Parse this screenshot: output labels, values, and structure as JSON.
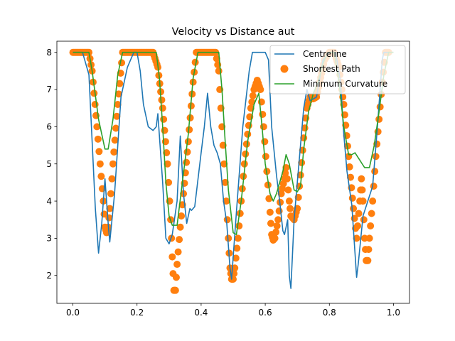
{
  "chart_data": {
    "type": "line",
    "title": "Velocity vs Distance aut",
    "xlabel": "",
    "ylabel": "",
    "xlim": [
      -0.05,
      1.05
    ],
    "ylim": [
      1.25,
      8.3
    ],
    "xticks": [
      0.0,
      0.2,
      0.4,
      0.6,
      0.8,
      1.0
    ],
    "xtick_labels": [
      "0.0",
      "0.2",
      "0.4",
      "0.6",
      "0.8",
      "1.0"
    ],
    "yticks": [
      2,
      3,
      4,
      5,
      6,
      7,
      8
    ],
    "ytick_labels": [
      "2",
      "3",
      "4",
      "5",
      "6",
      "7",
      "8"
    ],
    "grid": false,
    "legend_position": "upper-right",
    "series": [
      {
        "name": "Centreline",
        "style": "line",
        "color": "#1f77b4",
        "points": [
          [
            0.0,
            8.0
          ],
          [
            0.03,
            8.0
          ],
          [
            0.05,
            7.4
          ],
          [
            0.06,
            5.6
          ],
          [
            0.07,
            3.8
          ],
          [
            0.08,
            2.6
          ],
          [
            0.09,
            3.4
          ],
          [
            0.1,
            4.6
          ],
          [
            0.11,
            3.4
          ],
          [
            0.115,
            2.9
          ],
          [
            0.13,
            4.2
          ],
          [
            0.15,
            6.8
          ],
          [
            0.17,
            7.6
          ],
          [
            0.19,
            8.0
          ],
          [
            0.2,
            8.0
          ],
          [
            0.21,
            7.5
          ],
          [
            0.22,
            6.6
          ],
          [
            0.235,
            6.0
          ],
          [
            0.25,
            5.9
          ],
          [
            0.26,
            6.0
          ],
          [
            0.265,
            6.35
          ],
          [
            0.28,
            4.5
          ],
          [
            0.29,
            3.0
          ],
          [
            0.3,
            2.85
          ],
          [
            0.31,
            3.1
          ],
          [
            0.325,
            4.0
          ],
          [
            0.335,
            5.75
          ],
          [
            0.345,
            4.2
          ],
          [
            0.355,
            3.4
          ],
          [
            0.365,
            3.8
          ],
          [
            0.37,
            3.75
          ],
          [
            0.38,
            3.85
          ],
          [
            0.4,
            5.3
          ],
          [
            0.41,
            6.0
          ],
          [
            0.42,
            6.9
          ],
          [
            0.43,
            6.0
          ],
          [
            0.44,
            5.5
          ],
          [
            0.45,
            5.3
          ],
          [
            0.46,
            5.0
          ],
          [
            0.47,
            4.0
          ],
          [
            0.48,
            3.4
          ],
          [
            0.49,
            2.2
          ],
          [
            0.495,
            1.9
          ],
          [
            0.51,
            3.7
          ],
          [
            0.53,
            6.0
          ],
          [
            0.55,
            7.5
          ],
          [
            0.56,
            8.0
          ],
          [
            0.6,
            8.0
          ],
          [
            0.61,
            7.8
          ],
          [
            0.62,
            6.0
          ],
          [
            0.635,
            4.7
          ],
          [
            0.645,
            4.0
          ],
          [
            0.655,
            3.2
          ],
          [
            0.66,
            3.1
          ],
          [
            0.67,
            3.5
          ],
          [
            0.675,
            2.0
          ],
          [
            0.68,
            1.65
          ],
          [
            0.69,
            3.5
          ],
          [
            0.7,
            4.5
          ],
          [
            0.71,
            5.5
          ],
          [
            0.72,
            6.5
          ],
          [
            0.73,
            7.0
          ],
          [
            0.74,
            6.7
          ],
          [
            0.75,
            6.75
          ],
          [
            0.76,
            6.8
          ],
          [
            0.78,
            7.8
          ],
          [
            0.8,
            8.0
          ],
          [
            0.82,
            8.0
          ],
          [
            0.835,
            7.2
          ],
          [
            0.845,
            5.8
          ],
          [
            0.855,
            4.8
          ],
          [
            0.87,
            3.9
          ],
          [
            0.88,
            2.6
          ],
          [
            0.885,
            1.95
          ],
          [
            0.89,
            2.3
          ],
          [
            0.905,
            3.6
          ],
          [
            0.92,
            4.0
          ],
          [
            0.935,
            4.4
          ],
          [
            0.95,
            6.0
          ],
          [
            0.965,
            7.8
          ],
          [
            0.97,
            8.0
          ],
          [
            1.0,
            8.0
          ]
        ]
      },
      {
        "name": "Shortest Path",
        "style": "markers",
        "color": "#ff7f0e",
        "points": [
          [
            0.0,
            8.0
          ],
          [
            0.05,
            8.0
          ],
          [
            0.06,
            7.5
          ],
          [
            0.075,
            6.0
          ],
          [
            0.085,
            5.0
          ],
          [
            0.095,
            4.0
          ],
          [
            0.1,
            3.3
          ],
          [
            0.105,
            3.15
          ],
          [
            0.11,
            3.3
          ],
          [
            0.115,
            3.8
          ],
          [
            0.125,
            5.0
          ],
          [
            0.14,
            6.6
          ],
          [
            0.155,
            8.0
          ],
          [
            0.25,
            8.0
          ],
          [
            0.265,
            7.6
          ],
          [
            0.28,
            6.5
          ],
          [
            0.295,
            5.0
          ],
          [
            0.305,
            3.5
          ],
          [
            0.31,
            2.5
          ],
          [
            0.315,
            1.6
          ],
          [
            0.32,
            1.6
          ],
          [
            0.325,
            2.3
          ],
          [
            0.335,
            3.3
          ],
          [
            0.345,
            4.2
          ],
          [
            0.36,
            5.6
          ],
          [
            0.375,
            7.2
          ],
          [
            0.385,
            8.0
          ],
          [
            0.445,
            8.0
          ],
          [
            0.455,
            7.5
          ],
          [
            0.465,
            6.0
          ],
          [
            0.475,
            4.5
          ],
          [
            0.485,
            3.0
          ],
          [
            0.49,
            2.2
          ],
          [
            0.495,
            1.9
          ],
          [
            0.5,
            1.9
          ],
          [
            0.505,
            2.2
          ],
          [
            0.515,
            3.0
          ],
          [
            0.525,
            4.0
          ],
          [
            0.535,
            5.0
          ],
          [
            0.545,
            5.8
          ],
          [
            0.555,
            6.5
          ],
          [
            0.565,
            7.0
          ],
          [
            0.575,
            7.25
          ],
          [
            0.585,
            7.0
          ],
          [
            0.595,
            6.0
          ],
          [
            0.605,
            4.8
          ],
          [
            0.615,
            3.7
          ],
          [
            0.62,
            3.1
          ],
          [
            0.625,
            2.95
          ],
          [
            0.63,
            3.0
          ],
          [
            0.64,
            3.5
          ],
          [
            0.65,
            4.2
          ],
          [
            0.66,
            4.6
          ],
          [
            0.665,
            4.9
          ],
          [
            0.675,
            4.0
          ],
          [
            0.68,
            3.6
          ],
          [
            0.69,
            3.5
          ],
          [
            0.7,
            3.8
          ],
          [
            0.71,
            4.7
          ],
          [
            0.72,
            5.7
          ],
          [
            0.73,
            6.5
          ],
          [
            0.74,
            6.8
          ],
          [
            0.75,
            6.75
          ],
          [
            0.76,
            6.8
          ],
          [
            0.77,
            7.2
          ],
          [
            0.785,
            7.8
          ],
          [
            0.8,
            8.0
          ],
          [
            0.815,
            8.0
          ],
          [
            0.83,
            7.6
          ],
          [
            0.845,
            6.6
          ],
          [
            0.86,
            5.2
          ],
          [
            0.875,
            3.8
          ],
          [
            0.885,
            3.0
          ],
          [
            0.895,
            4.0
          ],
          [
            0.9,
            4.6
          ],
          [
            0.905,
            4.0
          ],
          [
            0.91,
            3.0
          ],
          [
            0.915,
            2.4
          ],
          [
            0.92,
            2.4
          ],
          [
            0.925,
            3.0
          ],
          [
            0.935,
            4.0
          ],
          [
            0.945,
            5.2
          ],
          [
            0.955,
            6.2
          ],
          [
            0.965,
            7.2
          ],
          [
            0.975,
            8.0
          ],
          [
            0.985,
            8.0
          ]
        ]
      },
      {
        "name": "Minimum Curvature",
        "style": "line",
        "color": "#2ca02c",
        "points": [
          [
            0.0,
            8.0
          ],
          [
            0.05,
            8.0
          ],
          [
            0.06,
            7.5
          ],
          [
            0.08,
            6.2
          ],
          [
            0.1,
            5.4
          ],
          [
            0.11,
            5.4
          ],
          [
            0.125,
            6.2
          ],
          [
            0.14,
            7.4
          ],
          [
            0.155,
            8.0
          ],
          [
            0.26,
            8.0
          ],
          [
            0.27,
            7.3
          ],
          [
            0.28,
            6.0
          ],
          [
            0.29,
            4.5
          ],
          [
            0.3,
            3.6
          ],
          [
            0.31,
            3.35
          ],
          [
            0.325,
            3.35
          ],
          [
            0.34,
            4.4
          ],
          [
            0.36,
            5.8
          ],
          [
            0.375,
            7.3
          ],
          [
            0.39,
            8.0
          ],
          [
            0.455,
            8.0
          ],
          [
            0.465,
            7.0
          ],
          [
            0.475,
            5.6
          ],
          [
            0.485,
            4.3
          ],
          [
            0.5,
            3.15
          ],
          [
            0.51,
            3.1
          ],
          [
            0.525,
            4.0
          ],
          [
            0.545,
            5.6
          ],
          [
            0.565,
            6.6
          ],
          [
            0.58,
            6.9
          ],
          [
            0.59,
            6.0
          ],
          [
            0.6,
            5.0
          ],
          [
            0.615,
            4.2
          ],
          [
            0.625,
            4.0
          ],
          [
            0.635,
            4.2
          ],
          [
            0.655,
            4.8
          ],
          [
            0.665,
            5.25
          ],
          [
            0.675,
            5.0
          ],
          [
            0.69,
            4.3
          ],
          [
            0.7,
            4.25
          ],
          [
            0.71,
            4.4
          ],
          [
            0.72,
            5.4
          ],
          [
            0.735,
            6.4
          ],
          [
            0.75,
            6.9
          ],
          [
            0.765,
            7.2
          ],
          [
            0.78,
            7.7
          ],
          [
            0.795,
            8.0
          ],
          [
            0.815,
            8.0
          ],
          [
            0.83,
            7.2
          ],
          [
            0.845,
            6.0
          ],
          [
            0.86,
            5.25
          ],
          [
            0.87,
            5.25
          ],
          [
            0.88,
            5.3
          ],
          [
            0.895,
            5.1
          ],
          [
            0.91,
            4.9
          ],
          [
            0.925,
            4.9
          ],
          [
            0.94,
            5.5
          ],
          [
            0.955,
            6.4
          ],
          [
            0.97,
            7.4
          ],
          [
            0.985,
            8.0
          ],
          [
            1.0,
            8.0
          ]
        ]
      }
    ]
  }
}
